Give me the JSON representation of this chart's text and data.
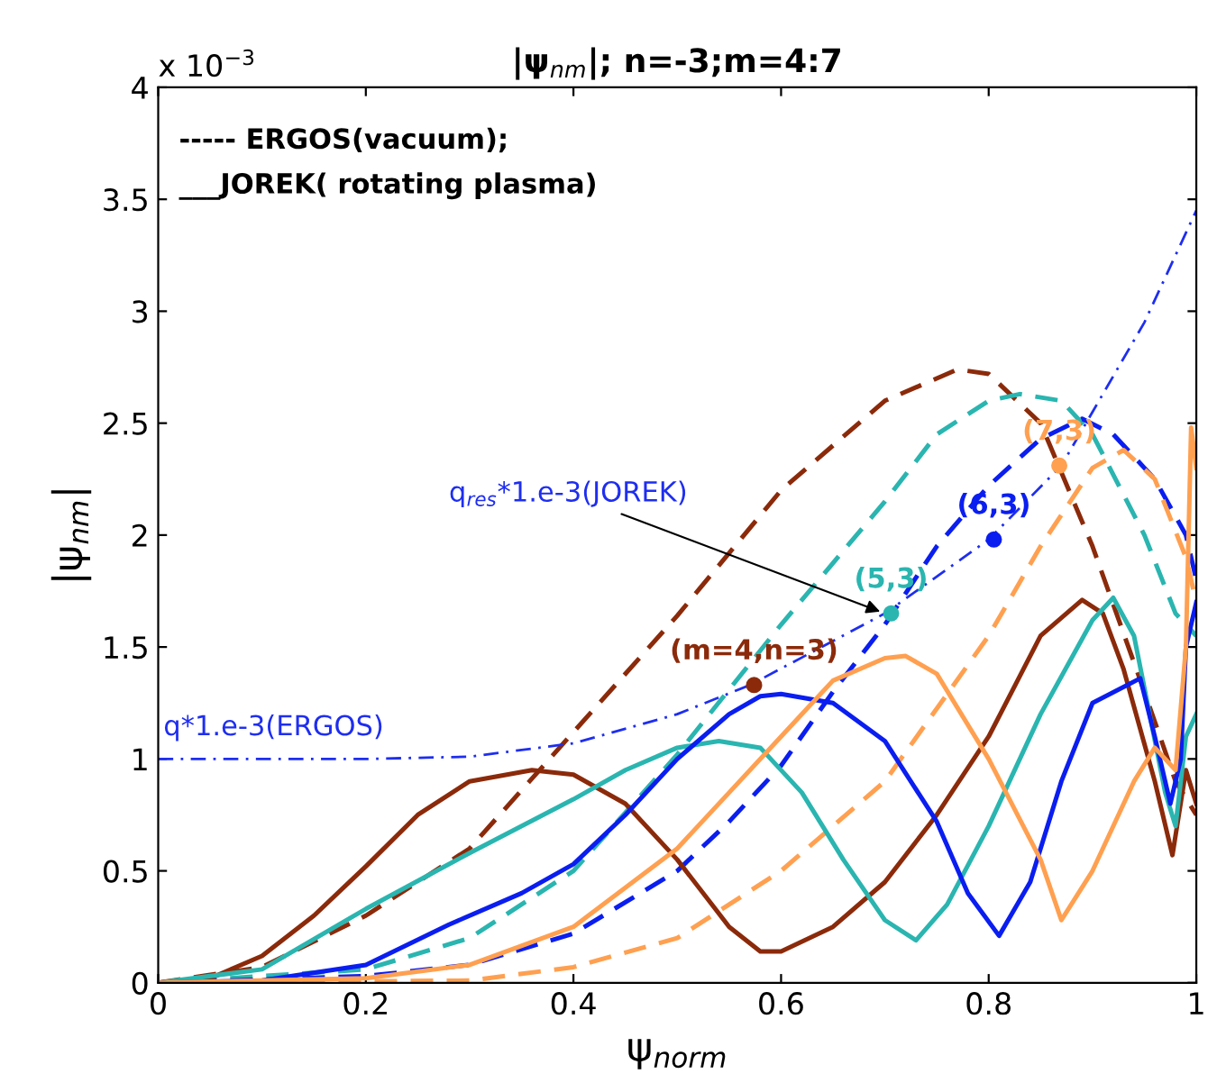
{
  "chart_data": {
    "type": "line",
    "title": "|ψ$_{nm}$|; n=-3;m=4:7",
    "xlabel": "ψ$_{norm}$",
    "ylabel": "|ψ$_{nm}$|",
    "xlim": [
      0,
      1
    ],
    "ylim": [
      0,
      4
    ],
    "xticks": [
      0,
      0.2,
      0.4,
      0.6,
      0.8,
      1
    ],
    "yticks": [
      0,
      0.5,
      1,
      1.5,
      2,
      2.5,
      3,
      3.5,
      4
    ],
    "grid": false,
    "legend": false,
    "annotations": [
      "x 10$^{−3}$",
      "----- ERGOS(vacuum);",
      "___JOREK( rotating plasma)",
      "q*1.e-3(ERGOS)",
      {
        "text": "q$_{res}$*1.e-3(JOREK)",
        "x": 0.7,
        "y": 1.65
      },
      {
        "text": "(m=4,n=3)",
        "x": 0.574,
        "y": 1.33
      },
      {
        "text": "(5,3)",
        "x": 0.706,
        "y": 1.65
      },
      {
        "text": "(6,3)",
        "x": 0.805,
        "y": 1.98
      },
      {
        "text": "(7,3)",
        "x": 0.868,
        "y": 2.31
      }
    ],
    "series": [
      {
        "color": "#8b2a0a",
        "line_style": "dashed",
        "x": [
          0,
          0.1,
          0.2,
          0.3,
          0.4,
          0.5,
          0.6,
          0.7,
          0.77,
          0.8,
          0.85,
          0.9,
          0.95,
          0.98,
          1.0
        ],
        "values": [
          0,
          0.07,
          0.3,
          0.6,
          1.12,
          1.64,
          2.2,
          2.6,
          2.74,
          2.72,
          2.5,
          1.95,
          1.3,
          0.9,
          0.75
        ]
      },
      {
        "color": "#2ab5b0",
        "line_style": "dashed",
        "x": [
          0,
          0.2,
          0.3,
          0.4,
          0.5,
          0.6,
          0.7,
          0.75,
          0.8,
          0.83,
          0.87,
          0.9,
          0.95,
          0.98,
          1.0
        ],
        "values": [
          0,
          0.06,
          0.2,
          0.5,
          1.02,
          1.6,
          2.15,
          2.45,
          2.6,
          2.63,
          2.6,
          2.45,
          2.0,
          1.65,
          1.55
        ]
      },
      {
        "color": "#0a1ef0",
        "line_style": "dashed",
        "x": [
          0,
          0.2,
          0.3,
          0.4,
          0.5,
          0.55,
          0.6,
          0.65,
          0.7,
          0.75,
          0.8,
          0.85,
          0.89,
          0.92,
          0.96,
          0.99,
          1.0
        ],
        "values": [
          0,
          0.03,
          0.08,
          0.22,
          0.5,
          0.72,
          0.97,
          1.3,
          1.6,
          1.95,
          2.22,
          2.43,
          2.52,
          2.45,
          2.25,
          2.0,
          1.8
        ]
      },
      {
        "color": "#ffa050",
        "line_style": "dashed",
        "x": [
          0,
          0.3,
          0.4,
          0.5,
          0.6,
          0.7,
          0.8,
          0.85,
          0.9,
          0.93,
          0.96,
          0.99,
          1.0
        ],
        "values": [
          0,
          0.01,
          0.07,
          0.2,
          0.5,
          0.9,
          1.55,
          1.95,
          2.3,
          2.38,
          2.25,
          1.9,
          1.7
        ]
      },
      {
        "color": "#8b2a0a",
        "line_style": "solid",
        "x": [
          0,
          0.05,
          0.1,
          0.15,
          0.2,
          0.25,
          0.3,
          0.36,
          0.4,
          0.45,
          0.5,
          0.55,
          0.58,
          0.6,
          0.65,
          0.7,
          0.75,
          0.8,
          0.85,
          0.89,
          0.91,
          0.93,
          0.96,
          0.977,
          0.99,
          1.0
        ],
        "values": [
          0,
          0.02,
          0.12,
          0.3,
          0.52,
          0.75,
          0.9,
          0.95,
          0.93,
          0.8,
          0.55,
          0.25,
          0.14,
          0.14,
          0.25,
          0.45,
          0.75,
          1.1,
          1.55,
          1.71,
          1.65,
          1.4,
          0.9,
          0.57,
          0.95,
          0.8
        ]
      },
      {
        "color": "#2ab5b0",
        "line_style": "solid",
        "x": [
          0,
          0.1,
          0.2,
          0.3,
          0.4,
          0.45,
          0.5,
          0.54,
          0.58,
          0.62,
          0.66,
          0.7,
          0.73,
          0.76,
          0.8,
          0.85,
          0.9,
          0.92,
          0.94,
          0.97,
          0.98,
          0.99,
          1.0
        ],
        "values": [
          0,
          0.06,
          0.33,
          0.58,
          0.82,
          0.95,
          1.05,
          1.08,
          1.05,
          0.85,
          0.55,
          0.28,
          0.19,
          0.35,
          0.7,
          1.2,
          1.62,
          1.72,
          1.55,
          0.85,
          0.7,
          1.1,
          1.2
        ]
      },
      {
        "color": "#0a1ef0",
        "line_style": "solid",
        "x": [
          0,
          0.1,
          0.2,
          0.28,
          0.35,
          0.4,
          0.45,
          0.5,
          0.55,
          0.58,
          0.6,
          0.65,
          0.7,
          0.75,
          0.78,
          0.81,
          0.84,
          0.87,
          0.9,
          0.946,
          0.96,
          0.975,
          0.985,
          0.99,
          1.0
        ],
        "values": [
          0,
          0.01,
          0.08,
          0.26,
          0.4,
          0.53,
          0.75,
          1.0,
          1.2,
          1.28,
          1.29,
          1.25,
          1.08,
          0.72,
          0.4,
          0.21,
          0.45,
          0.9,
          1.25,
          1.36,
          1.1,
          0.8,
          1.0,
          1.5,
          1.7
        ]
      },
      {
        "color": "#ffa050",
        "line_style": "solid",
        "x": [
          0,
          0.2,
          0.3,
          0.4,
          0.5,
          0.55,
          0.6,
          0.65,
          0.7,
          0.72,
          0.75,
          0.8,
          0.85,
          0.87,
          0.9,
          0.94,
          0.96,
          0.98,
          0.99,
          0.995,
          1.0
        ],
        "values": [
          0,
          0.02,
          0.08,
          0.25,
          0.6,
          0.85,
          1.1,
          1.35,
          1.45,
          1.46,
          1.38,
          1.0,
          0.55,
          0.28,
          0.5,
          0.9,
          1.05,
          0.95,
          1.5,
          2.48,
          2.3
        ]
      },
      {
        "color": "#1e2ef0",
        "line_style": "dashdot",
        "x": [
          0,
          0.2,
          0.3,
          0.4,
          0.5,
          0.57,
          0.7,
          0.8,
          0.87,
          0.9,
          0.95,
          1.0
        ],
        "values": [
          1.0,
          1.0,
          1.01,
          1.07,
          1.2,
          1.33,
          1.65,
          1.98,
          2.31,
          2.55,
          2.95,
          3.45
        ]
      },
      {
        "type": "scatter",
        "marker": "circle",
        "x": [
          0.574,
          0.706,
          0.805,
          0.868
        ],
        "values": [
          1.33,
          1.65,
          1.98,
          2.31
        ],
        "colors": [
          "#8b2a0a",
          "#2ab5b0",
          "#0a1ef0",
          "#ffa050"
        ]
      }
    ]
  }
}
